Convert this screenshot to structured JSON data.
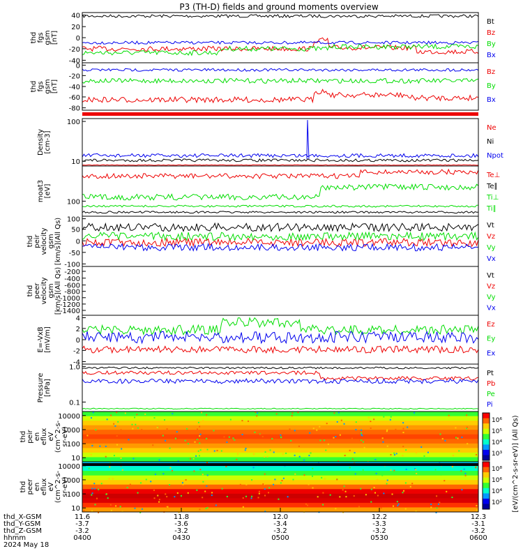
{
  "title": "P3 (TH-D) fields and ground moments overview",
  "colors": {
    "black": "#000000",
    "red": "#ee0000",
    "green": "#00dd00",
    "blue": "#0000ee",
    "colorbar": [
      "#ff0000",
      "#ff6600",
      "#ffcc00",
      "#ccff00",
      "#33ff33",
      "#00ffcc",
      "#0099ff",
      "#0000ee",
      "#000099"
    ]
  },
  "panels": [
    {
      "key": "fgs_gsm",
      "ylabel": [
        "thd",
        "fgs",
        "gsm",
        "[nT]"
      ],
      "yticks": [
        "40",
        "20",
        "0",
        "-20",
        "-40"
      ],
      "legend": [
        {
          "label": "Bt",
          "color": "black"
        },
        {
          "label": "Bz",
          "color": "red"
        },
        {
          "label": "By",
          "color": "green"
        },
        {
          "label": "Bx",
          "color": "blue"
        }
      ]
    },
    {
      "key": "fgs_gsm_2",
      "ylabel": [
        "thd",
        "fgs",
        "gsm",
        "[nT]"
      ],
      "yticks": [
        "0",
        "-20",
        "-40",
        "-60",
        "-80"
      ],
      "legend": [
        {
          "label": "Bz",
          "color": "red"
        },
        {
          "label": "By",
          "color": "green"
        },
        {
          "label": "Bx",
          "color": "blue"
        }
      ]
    },
    {
      "key": "density",
      "ylabel": [
        "Density",
        "[cm-3]"
      ],
      "yticks": [
        "100",
        "10"
      ],
      "legend": [
        {
          "label": "Ne",
          "color": "red"
        },
        {
          "label": "Ni",
          "color": "black"
        },
        {
          "label": "Npot",
          "color": "blue"
        }
      ]
    },
    {
      "key": "temperature",
      "ylabel": [
        "moat3",
        "[eV]"
      ],
      "yticks": [
        "100"
      ],
      "legend": [
        {
          "label": "Te⊥",
          "color": "red"
        },
        {
          "label": "Te∥",
          "color": "black"
        },
        {
          "label": "Ti⊥",
          "color": "green"
        },
        {
          "label": "Ti∥",
          "color": "green"
        }
      ]
    },
    {
      "key": "peir_velocity",
      "ylabel": [
        "thd",
        "peir",
        "velocity",
        "gsm",
        "[km/s](All Qs)"
      ],
      "yticks": [
        "100",
        "50",
        "0",
        "-50",
        "-100"
      ],
      "legend": [
        {
          "label": "Vt",
          "color": "black"
        },
        {
          "label": "Vz",
          "color": "red"
        },
        {
          "label": "Vy",
          "color": "green"
        },
        {
          "label": "Vx",
          "color": "blue"
        }
      ]
    },
    {
      "key": "peer_velocity",
      "ylabel": [
        "thd",
        "peer",
        "velocity",
        "gsm",
        "[km/s](All Qs)"
      ],
      "yticks": [
        "-200",
        "-400",
        "-600",
        "-800",
        "-1000",
        "-1200",
        "-1400"
      ],
      "legend": [
        {
          "label": "Vt",
          "color": "black"
        },
        {
          "label": "Vz",
          "color": "red"
        },
        {
          "label": "Vy",
          "color": "green"
        },
        {
          "label": "Vx",
          "color": "blue"
        }
      ]
    },
    {
      "key": "efield",
      "ylabel": [
        "E=-VxB",
        "[mV/m]"
      ],
      "yticks": [
        "4",
        "2",
        "0",
        "-2",
        "-4"
      ],
      "legend": [
        {
          "label": "Ez",
          "color": "red"
        },
        {
          "label": "Ey",
          "color": "green"
        },
        {
          "label": "Ex",
          "color": "blue"
        }
      ]
    },
    {
      "key": "pressure",
      "ylabel": [
        "Pressure",
        "[nPa]"
      ],
      "yticks": [
        "1.0",
        "0.1"
      ],
      "legend": [
        {
          "label": "Pt",
          "color": "black"
        },
        {
          "label": "Pb",
          "color": "red"
        },
        {
          "label": "Pe",
          "color": "green"
        },
        {
          "label": "Pi",
          "color": "blue"
        }
      ]
    },
    {
      "key": "peir_spectrogram",
      "ylabel": [
        "thd",
        "peir",
        "en",
        "eflux",
        "eV",
        "(cm^2-s-",
        "sr-eV)"
      ],
      "yticks": [
        "10000",
        "1000",
        "100",
        "10"
      ]
    },
    {
      "key": "peer_spectrogram",
      "ylabel": [
        "thd",
        "peer",
        "en",
        "eflux",
        "eV",
        "(cm^2-s-",
        "sr-eV)"
      ],
      "yticks": [
        "10000",
        "1000",
        "100",
        "10"
      ]
    }
  ],
  "colorbars": [
    {
      "ticks": [
        "10⁶",
        "10⁵",
        "10⁴",
        "10³"
      ]
    },
    {
      "ticks": [
        "10⁸",
        "10⁶",
        "10⁴",
        "10²"
      ]
    }
  ],
  "colorbar_label": "[eV/(cm^2-s-sr-eV)] (All Qs)",
  "xaxis": {
    "row_labels": [
      "thd_X-GSM",
      "thd_Y-GSM",
      "thd_Z-GSM",
      "hhmm",
      "2024 May 18"
    ],
    "columns": [
      {
        "x": "11.6",
        "y": "-3.7",
        "z": "-3.2",
        "hhmm": "0400"
      },
      {
        "x": "11.8",
        "y": "-3.6",
        "z": "-3.2",
        "hhmm": "0430"
      },
      {
        "x": "12.0",
        "y": "-3.4",
        "z": "-3.2",
        "hhmm": "0500"
      },
      {
        "x": "12.2",
        "y": "-3.3",
        "z": "-3.2",
        "hhmm": "0530"
      },
      {
        "x": "12.3",
        "y": "-3.1",
        "z": "-3.2",
        "hhmm": "0600"
      }
    ]
  },
  "chart_data": [
    {
      "type": "line",
      "title": "P3 (TH-D) fields and ground moments overview",
      "ylabel": "thd fgs gsm [nT]",
      "ylim": [
        -45,
        45
      ],
      "x": [
        "0400",
        "0430",
        "0500",
        "0530",
        "0600"
      ],
      "series": [
        {
          "name": "Bt",
          "values": [
            40,
            41,
            38,
            31,
            31
          ]
        },
        {
          "name": "Bz",
          "values": [
            -20,
            -28,
            -34,
            -12,
            -24
          ]
        },
        {
          "name": "By",
          "values": [
            -30,
            -21,
            -17,
            -17,
            -24
          ]
        },
        {
          "name": "Bx",
          "values": [
            -12,
            -12,
            -10,
            -3,
            -4
          ]
        }
      ]
    },
    {
      "type": "line",
      "ylabel": "thd fgs gsm [nT]",
      "ylim": [
        -95,
        5
      ],
      "x": [
        "0400",
        "0430",
        "0500",
        "0530",
        "0600"
      ],
      "series": [
        {
          "name": "Bz",
          "values": [
            -68,
            -78,
            -86,
            -63,
            -75
          ]
        },
        {
          "name": "By",
          "values": [
            -33,
            -33,
            -26,
            -22,
            -28
          ]
        },
        {
          "name": "Bx",
          "values": [
            -14,
            -12,
            -10,
            -5,
            -5
          ]
        }
      ]
    },
    {
      "type": "line",
      "ylabel": "Density [cm-3]",
      "ylim": [
        8,
        120
      ],
      "yscale": "log",
      "x": [
        "0400",
        "0430",
        "0500",
        "0530",
        "0600"
      ],
      "series": [
        {
          "name": "Ni",
          "values": [
            11,
            11,
            10,
            11,
            13
          ]
        },
        {
          "name": "Npot",
          "values": [
            13,
            14,
            13,
            16,
            19
          ]
        }
      ]
    },
    {
      "type": "line",
      "ylabel": "moat3 [eV]",
      "yscale": "log",
      "x": [
        "0400",
        "0430",
        "0500",
        "0530",
        "0600"
      ],
      "series": [
        {
          "name": "Te⊥",
          "values": [
            480,
            430,
            500,
            560,
            620
          ]
        },
        {
          "name": "Te∥",
          "values": [
            70,
            70,
            66,
            62,
            70
          ]
        },
        {
          "name": "Ti⊥",
          "values": [
            160,
            165,
            180,
            240,
            250
          ]
        },
        {
          "name": "Ti∥",
          "values": [
            88,
            88,
            90,
            85,
            88
          ]
        }
      ]
    },
    {
      "type": "line",
      "ylabel": "thd peir velocity gsm [km/s](All Qs)",
      "ylim": [
        -110,
        120
      ],
      "x": [
        "0400",
        "0430",
        "0500",
        "0530",
        "0600"
      ],
      "series": [
        {
          "name": "Vt",
          "values": [
            55,
            60,
            55,
            65,
            60
          ]
        },
        {
          "name": "Vz",
          "values": [
            -10,
            -5,
            0,
            -10,
            -5
          ]
        },
        {
          "name": "Vy",
          "values": [
            25,
            25,
            40,
            45,
            30
          ]
        },
        {
          "name": "Vx",
          "values": [
            -35,
            -40,
            -60,
            -45,
            -35
          ]
        }
      ]
    },
    {
      "type": "line",
      "ylabel": "E=-VxB [mV/m]",
      "ylim": [
        -4.5,
        4.5
      ],
      "x": [
        "0400",
        "0430",
        "0500",
        "0530",
        "0600"
      ],
      "series": [
        {
          "name": "Ez",
          "values": [
            -0.8,
            -0.8,
            -1.0,
            -0.9,
            -0.8
          ]
        },
        {
          "name": "Ey",
          "values": [
            0.8,
            1.2,
            2.5,
            1.0,
            0.8
          ]
        },
        {
          "name": "Ex",
          "values": [
            0.6,
            0.5,
            1.2,
            1.5,
            1.2
          ]
        }
      ]
    },
    {
      "type": "line",
      "ylabel": "Pressure [nPa]",
      "yscale": "log",
      "x": [
        "0400",
        "0430",
        "0500",
        "0530",
        "0600"
      ],
      "series": [
        {
          "name": "Pt",
          "values": [
            0.95,
            0.9,
            0.85,
            0.85,
            0.85
          ]
        },
        {
          "name": "Pb",
          "values": [
            0.7,
            0.6,
            0.55,
            0.3,
            0.32
          ]
        },
        {
          "name": "Pe",
          "values": [
            0.05,
            0.05,
            0.05,
            0.05,
            0.05
          ]
        },
        {
          "name": "Pi",
          "values": [
            0.28,
            0.3,
            0.26,
            0.27,
            0.28
          ]
        }
      ]
    },
    {
      "type": "heatmap",
      "ylabel": "thd peir en eflux eV (cm^2-s-sr-eV)",
      "yscale": "log",
      "ylim": [
        8,
        20000
      ]
    },
    {
      "type": "heatmap",
      "ylabel": "thd peer en eflux eV (cm^2-s-sr-eV)",
      "yscale": "log",
      "ylim": [
        8,
        20000
      ]
    }
  ]
}
